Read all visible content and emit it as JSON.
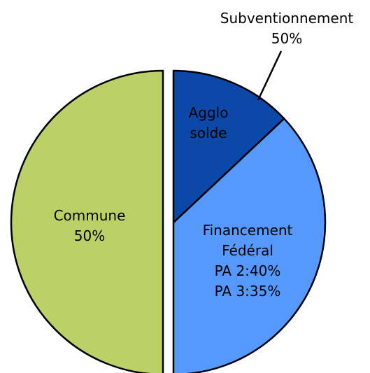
{
  "chart_data": {
    "type": "pie",
    "categories": [
      "Agglo solde",
      "Financement Fédéral",
      "Commune"
    ],
    "values": [
      13,
      37,
      50
    ],
    "value_labels": [
      null,
      null,
      "50%"
    ],
    "colors": [
      "#0b48a8",
      "#5599ff",
      "#bcd068"
    ],
    "annotations": [
      "Subventionnement",
      "50%",
      "PA 2:40%",
      "PA 3:35%"
    ]
  }
}
